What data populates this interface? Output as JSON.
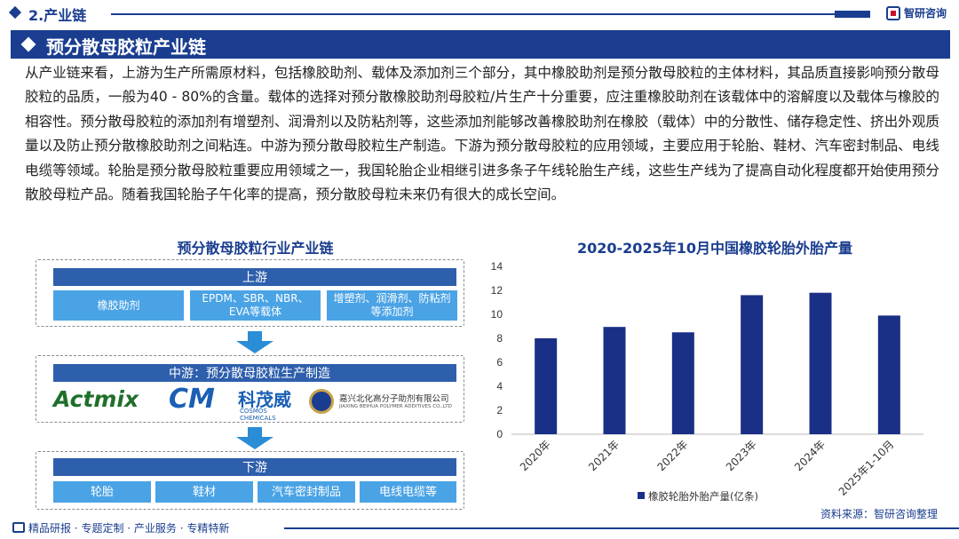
{
  "header": {
    "section": "2.产业链",
    "brand": "智研咨询"
  },
  "banner": {
    "title": "预分散母胶粒产业链"
  },
  "intro": "从产业链来看，上游为生产所需原材料，包括橡胶助剂、载体及添加剂三个部分，其中橡胶助剂是预分散母胶粒的主体材料，其品质直接影响预分散母胶粒的品质，一般为40 - 80%的含量。载体的选择对预分散橡胶助剂母胶粒/片生产十分重要，应注重橡胶助剂在该载体中的溶解度以及载体与橡胶的相容性。预分散母胶粒的添加剂有增塑剂、润滑剂以及防粘剂等，这些添加剂能够改善橡胶助剂在橡胶（载体）中的分散性、储存稳定性、挤出外观质量以及防止预分散橡胶助剂之间粘连。中游为预分散母胶粒生产制造。下游为预分散母胶粒的应用领域，主要应用于轮胎、鞋材、汽车密封制品、电线电缆等领域。轮胎是预分散母胶粒重要应用领域之一，我国轮胎企业相继引进多条子午线轮胎生产线，这些生产线为了提高自动化程度都开始使用预分散胶母粒产品。随着我国轮胎子午化率的提高，预分散胶母粒未来仍有很大的成长空间。",
  "diagram": {
    "title": "预分散母胶粒行业产业链",
    "upstream": {
      "label": "上游",
      "items": [
        "橡胶助剂",
        "EPDM、SBR、NBR、EVA等载体",
        "增塑剂、润滑剂、防粘剂等添加剂"
      ]
    },
    "midstream": {
      "label": "中游：预分散母胶粒生产制造",
      "logos": {
        "actmix": "Actmix",
        "cm": "CM",
        "cm_zh": "科茂威",
        "cm_en": "COSMOS CHEMICALS",
        "bh_zh": "嘉兴北化高分子助剂有限公司",
        "bh_en": "JIAXING BEIHUA POLYMER ADDITIVES CO.,LTD"
      }
    },
    "downstream": {
      "label": "下游",
      "items": [
        "轮胎",
        "鞋材",
        "汽车密封制品",
        "电线电缆等"
      ]
    }
  },
  "chart_title": "2020-2025年10月中国橡胶轮胎外胎产量",
  "chart_data": {
    "type": "bar",
    "categories": [
      "2020年",
      "2021年",
      "2022年",
      "2023年",
      "2024年",
      "2025年1-10月"
    ],
    "series": [
      {
        "name": "橡胶轮胎外胎产量(亿条)",
        "values": [
          8.0,
          8.95,
          8.5,
          11.6,
          11.8,
          9.9
        ]
      }
    ],
    "ylim": [
      0,
      14
    ],
    "yticks": [
      0,
      2,
      4,
      6,
      8,
      10,
      12,
      14
    ],
    "legend": "bottom",
    "grid": false,
    "color": "#1a2f86"
  },
  "source": "资料来源：智研咨询整理",
  "footer": "精品研报 · 专题定制 · 产业服务 · 专精特新"
}
